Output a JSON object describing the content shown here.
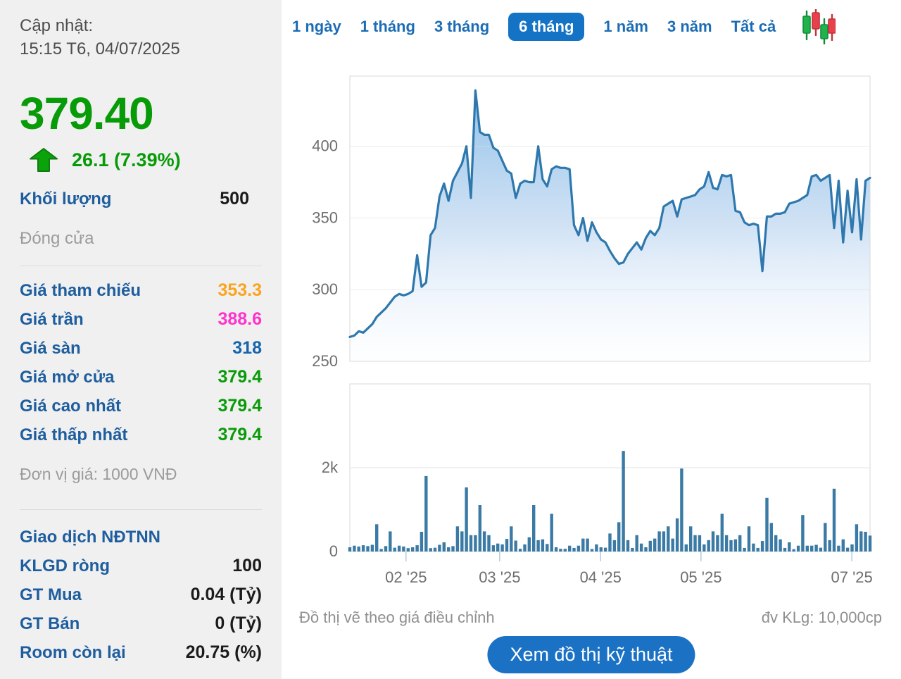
{
  "sidebar": {
    "updated_label": "Cập nhật:",
    "updated_time": "15:15 T6, 04/07/2025",
    "price": "379.40",
    "change": "26.1 (7.39%)",
    "volume_label": "Khối lượng",
    "volume_value": "500",
    "close_label": "Đóng cửa",
    "price_rows": [
      {
        "label": "Giá tham chiếu",
        "value": "353.3",
        "color": "#faa41e"
      },
      {
        "label": "Giá trần",
        "value": "388.6",
        "color": "#ff33cc"
      },
      {
        "label": "Giá sàn",
        "value": "318",
        "color": "#1565ad"
      },
      {
        "label": "Giá mở cửa",
        "value": "379.4",
        "color": "#089b08"
      },
      {
        "label": "Giá cao nhất",
        "value": "379.4",
        "color": "#089b08"
      },
      {
        "label": "Giá thấp nhất",
        "value": "379.4",
        "color": "#089b08"
      }
    ],
    "unit_note": "Đơn vị giá: 1000 VNĐ",
    "foreign_header": "Giao dịch NĐTNN",
    "foreign_rows": [
      {
        "label": "KLGD ròng",
        "value": "100"
      },
      {
        "label": "GT Mua",
        "value": "0.04 (Tỷ)"
      },
      {
        "label": "GT Bán",
        "value": "0 (Tỷ)"
      },
      {
        "label": "Room còn lại",
        "value": "20.75 (%)"
      }
    ]
  },
  "tabs": {
    "items": [
      "1 ngày",
      "1 tháng",
      "3 tháng",
      "6 tháng",
      "1 năm",
      "3 năm",
      "Tất cả"
    ],
    "active": "6 tháng",
    "candlestick_icon": "candlestick-chart-icon"
  },
  "chart_data": [
    {
      "type": "area",
      "title": "Adjusted price, 6 months (1000 VND)",
      "ylim": [
        250,
        449
      ],
      "yticks": [
        400,
        350,
        300,
        250
      ],
      "grid": true,
      "legend": "none",
      "line_color": "#2e78ad",
      "values": [
        267,
        268,
        271,
        270,
        273,
        276,
        281,
        284,
        287,
        291,
        295,
        297,
        296,
        297,
        299,
        324,
        302,
        305,
        338,
        343,
        365,
        374,
        362,
        376,
        382,
        388,
        400,
        364,
        439,
        410,
        408,
        408,
        399,
        397,
        390,
        383,
        381,
        364,
        374,
        376,
        375,
        375,
        400,
        377,
        372,
        384,
        386,
        385,
        385,
        384,
        345,
        338,
        350,
        334,
        347,
        340,
        335,
        333,
        327,
        322,
        318,
        319,
        325,
        329,
        333,
        328,
        336,
        341,
        338,
        343,
        358,
        360,
        362,
        351,
        363,
        364,
        365,
        366,
        370,
        372,
        382,
        371,
        370,
        380,
        379,
        380,
        355,
        354,
        347,
        345,
        346,
        345,
        313,
        351,
        351,
        353,
        353,
        354,
        360,
        361,
        362,
        364,
        366,
        379,
        380,
        376,
        378,
        380,
        343,
        376,
        333,
        369,
        340,
        377,
        335,
        376,
        378
      ]
    },
    {
      "type": "bar",
      "title": "Volume (unit 10,000 shares)",
      "ylim": [
        0,
        4000
      ],
      "yticks": [
        2000,
        0
      ],
      "ytick_labels": [
        "2k",
        "0"
      ],
      "grid": true,
      "bar_color": "#3a7aa4",
      "x_tick_labels": [
        "02 '25",
        "03 '25",
        "04 '25",
        "05 '25",
        "07 '25"
      ],
      "x_tick_positions": [
        0.108,
        0.288,
        0.482,
        0.675,
        0.965
      ],
      "values": [
        100,
        140,
        120,
        150,
        130,
        160,
        650,
        60,
        130,
        480,
        90,
        140,
        120,
        80,
        100,
        150,
        470,
        1800,
        80,
        90,
        160,
        220,
        100,
        130,
        600,
        480,
        1530,
        390,
        390,
        1110,
        480,
        390,
        150,
        190,
        170,
        300,
        600,
        260,
        65,
        170,
        340,
        1110,
        270,
        290,
        180,
        900,
        100,
        65,
        65,
        140,
        85,
        140,
        310,
        310,
        60,
        170,
        100,
        90,
        430,
        270,
        700,
        2400,
        270,
        85,
        390,
        190,
        100,
        255,
        310,
        480,
        480,
        600,
        310,
        790,
        1980,
        170,
        600,
        390,
        390,
        170,
        270,
        480,
        390,
        900,
        390,
        270,
        290,
        390,
        85,
        600,
        190,
        85,
        250,
        1280,
        680,
        390,
        290,
        85,
        220,
        55,
        140,
        870,
        140,
        140,
        160,
        90,
        680,
        270,
        1500,
        140,
        290,
        90,
        170,
        650,
        480,
        470,
        380
      ]
    }
  ],
  "footer": {
    "note": "Đồ thị vẽ theo giá điều chỉnh",
    "unit": "đv KLg: 10,000cp",
    "button": "Xem đồ thị kỹ thuật"
  },
  "colors": {
    "up_green": "#089b08",
    "label_blue": "#1e5e9e",
    "tab_blue": "#1b6cb5",
    "active_tab_bg": "#1573c6",
    "button_bg": "#1b72c4",
    "sidebar_bg": "#f1f0f1",
    "grid_line": "#dcdcdc",
    "plot_border": "#d9d9d9",
    "axis_text": "#6e6e6e",
    "area_line": "#2e78ad",
    "volume_bar": "#3a7aa4"
  }
}
